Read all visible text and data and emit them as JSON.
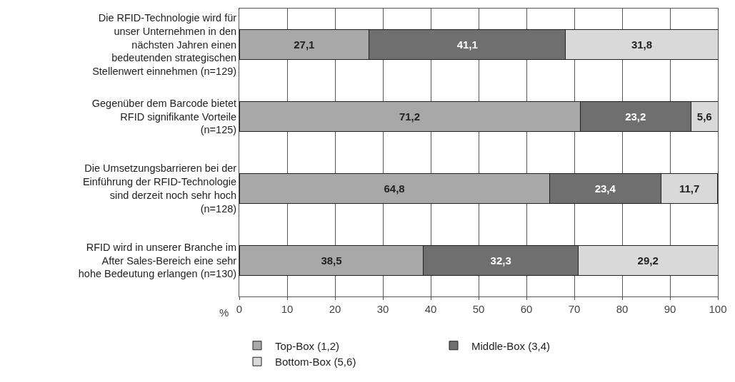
{
  "chart_data": {
    "type": "bar",
    "orientation": "horizontal",
    "stacked": true,
    "categories": [
      "Die RFID-Technologie wird für unser Unternehmen in den nächsten Jahren einen bedeutenden strategischen Stellenwert einnehmen (n=129)",
      "Gegenüber dem Barcode bietet RFID signifikante Vorteile (n=125)",
      "Die Umsetzungsbarrieren bei der Einführung der RFID-Technologie sind derzeit noch sehr hoch (n=128)",
      "RFID wird in unserer Branche im After Sales-Bereich eine sehr hohe Bedeutung erlangen (n=130)"
    ],
    "series": [
      {
        "name": "Top-Box (1,2)",
        "color": "#a8a8a8",
        "values": [
          27.1,
          71.2,
          64.8,
          38.5
        ],
        "value_labels": [
          "27,1",
          "71,2",
          "64,8",
          "38,5"
        ]
      },
      {
        "name": "Middle-Box (3,4)",
        "color": "#6f6f6f",
        "values": [
          41.1,
          23.2,
          23.4,
          32.3
        ],
        "value_labels": [
          "41,1",
          "23,2",
          "23,4",
          "32,3"
        ]
      },
      {
        "name": "Bottom-Box (5,6)",
        "color": "#d9d9d9",
        "values": [
          31.8,
          5.6,
          11.7,
          29.2
        ],
        "value_labels": [
          "31,8",
          "5,6",
          "11,7",
          "29,2"
        ]
      }
    ],
    "xlabel": "%",
    "xlim": [
      0,
      100
    ],
    "xticks": [
      0,
      10,
      20,
      30,
      40,
      50,
      60,
      70,
      80,
      90,
      100
    ],
    "grid": "x",
    "legend": "bottom"
  }
}
